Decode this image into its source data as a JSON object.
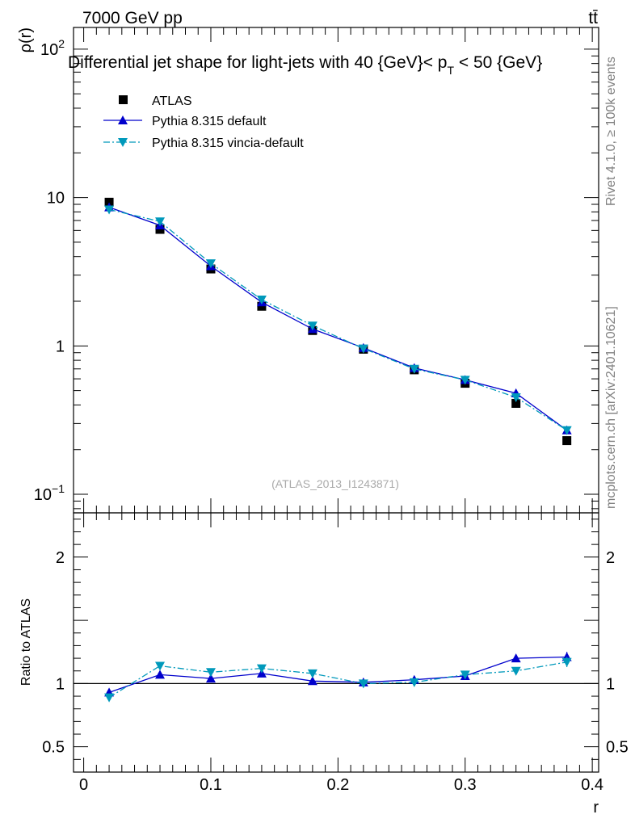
{
  "header": {
    "energy_label": "7000 GeV pp",
    "process_label": "tt̄",
    "rivet_label": "Rivet 4.1.0, ≥ 100k events",
    "site_label": "mcplots.cern.ch [arXiv:2401.10621]"
  },
  "chart_data": [
    {
      "type": "line",
      "title": "Differential jet shape for light-jets with 40 {GeV}< p_T < 50 {GeV}",
      "title_main": "Differential jet shape for light-jets with 40 {GeV}< p",
      "title_sub": "T",
      "title_end": " < 50 {GeV}",
      "ylabel": "ρ(r)",
      "yscale": "log",
      "ylim": [
        0.075,
        140
      ],
      "xlim": [
        -0.008,
        0.405
      ],
      "yticks": [
        {
          "value": 100,
          "base": "10",
          "exp": "2"
        },
        {
          "value": 10,
          "base": "10",
          "exp": ""
        },
        {
          "value": 1,
          "base": "1",
          "exp": ""
        },
        {
          "value": 0.1,
          "base": "10",
          "exp": "−1"
        }
      ],
      "analysis_label": "(ATLAS_2013_I1243871)",
      "legend_position": "top-left",
      "x": [
        0.02,
        0.06,
        0.1,
        0.14,
        0.18,
        0.22,
        0.26,
        0.3,
        0.34,
        0.38
      ],
      "series": [
        {
          "name": "ATLAS",
          "style": "marker",
          "color": "#000000",
          "values": [
            9.3,
            6.1,
            3.3,
            1.85,
            1.27,
            0.95,
            0.69,
            0.56,
            0.41,
            0.23
          ]
        },
        {
          "name": "Pythia 8.315 default",
          "style": "solid",
          "color": "#0000cc",
          "values": [
            8.6,
            6.5,
            3.45,
            1.97,
            1.3,
            0.97,
            0.71,
            0.59,
            0.48,
            0.27
          ]
        },
        {
          "name": "Pythia 8.315 vincia-default",
          "style": "dashdot",
          "color": "#0099bb",
          "values": [
            8.3,
            6.9,
            3.6,
            2.05,
            1.37,
            0.96,
            0.7,
            0.59,
            0.45,
            0.27
          ]
        }
      ]
    },
    {
      "type": "line",
      "ylabel": "Ratio to ATLAS",
      "xlabel": "r",
      "ylim": [
        0.3,
        2.35
      ],
      "xlim": [
        -0.008,
        0.405
      ],
      "reference": 1,
      "yticks": [
        {
          "value": 2,
          "label": "2"
        },
        {
          "value": 1,
          "label": "1"
        },
        {
          "value": 0.5,
          "label": "0.5"
        }
      ],
      "xticks": [
        {
          "value": 0,
          "label": "0"
        },
        {
          "value": 0.1,
          "label": "0.1"
        },
        {
          "value": 0.2,
          "label": "0.2"
        },
        {
          "value": 0.3,
          "label": "0.3"
        },
        {
          "value": 0.4,
          "label": "0.4"
        }
      ],
      "x": [
        0.02,
        0.06,
        0.1,
        0.14,
        0.18,
        0.22,
        0.26,
        0.3,
        0.34,
        0.38
      ],
      "series": [
        {
          "name": "Pythia 8.315 default",
          "style": "solid",
          "color": "#0000cc",
          "values": [
            0.93,
            1.07,
            1.04,
            1.08,
            1.02,
            1.01,
            1.03,
            1.06,
            1.2,
            1.21
          ],
          "errors": [
            0.01,
            0.01,
            0.01,
            0.01,
            0.01,
            0.02,
            0.02,
            0.02,
            0.03,
            0.04
          ]
        },
        {
          "name": "Pythia 8.315 vincia-default",
          "style": "dashdot",
          "color": "#0099bb",
          "values": [
            0.89,
            1.14,
            1.09,
            1.12,
            1.08,
            1.0,
            1.01,
            1.07,
            1.1,
            1.17
          ],
          "errors": [
            0.01,
            0.01,
            0.01,
            0.01,
            0.01,
            0.02,
            0.02,
            0.02,
            0.03,
            0.04
          ]
        }
      ]
    }
  ]
}
